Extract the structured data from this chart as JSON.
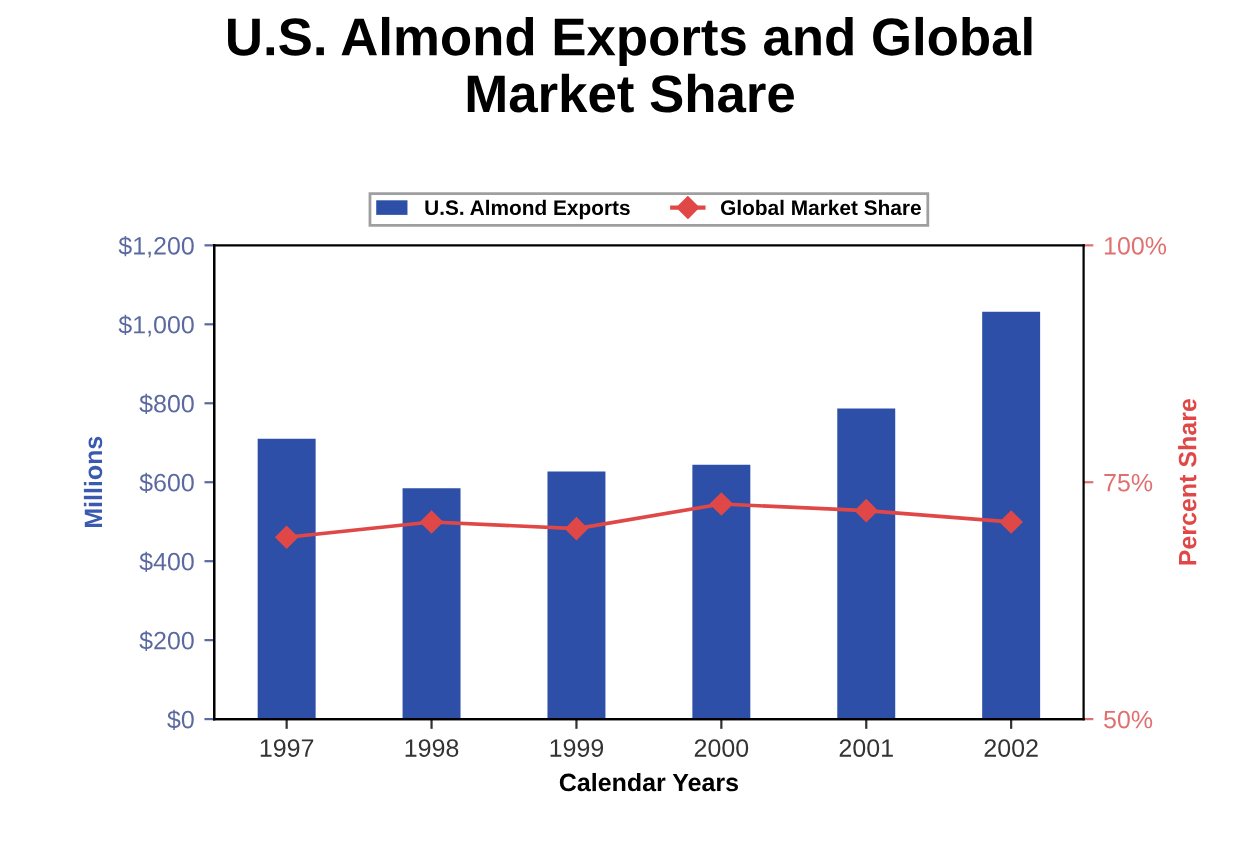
{
  "chart_data": {
    "type": "bar",
    "title": "U.S. Almond Exports and Global\nMarket Share",
    "xlabel": "Calendar Years",
    "ylabel": "Millions",
    "y2label": "Percent Share",
    "categories": [
      "1997",
      "1998",
      "1999",
      "2000",
      "2001",
      "2002"
    ],
    "series": [
      {
        "name": "U.S. Almond Exports",
        "color": "#2e4fa8",
        "values": [
          710,
          585,
          627,
          644,
          787,
          1032
        ]
      },
      {
        "name": "Global Market Share",
        "type": "line",
        "axis": "y2",
        "color": "#e04848",
        "marker": "diamond",
        "values": [
          69.2,
          70.8,
          70.1,
          72.7,
          72.0,
          70.8
        ]
      }
    ],
    "ylim": [
      0,
      1200
    ],
    "yticks": [
      {
        "value": 0,
        "label": "$0"
      },
      {
        "value": 200,
        "label": "$200"
      },
      {
        "value": 400,
        "label": "$400"
      },
      {
        "value": 600,
        "label": "$600"
      },
      {
        "value": 800,
        "label": "$800"
      },
      {
        "value": 1000,
        "label": "$1,000"
      },
      {
        "value": 1200,
        "label": "$1,200"
      }
    ],
    "y2lim": [
      50,
      100
    ],
    "y2ticks": [
      {
        "value": 50,
        "label": "50%"
      },
      {
        "value": 75,
        "label": "75%"
      },
      {
        "value": 100,
        "label": "100%"
      }
    ],
    "legend": "top",
    "grid": false
  }
}
